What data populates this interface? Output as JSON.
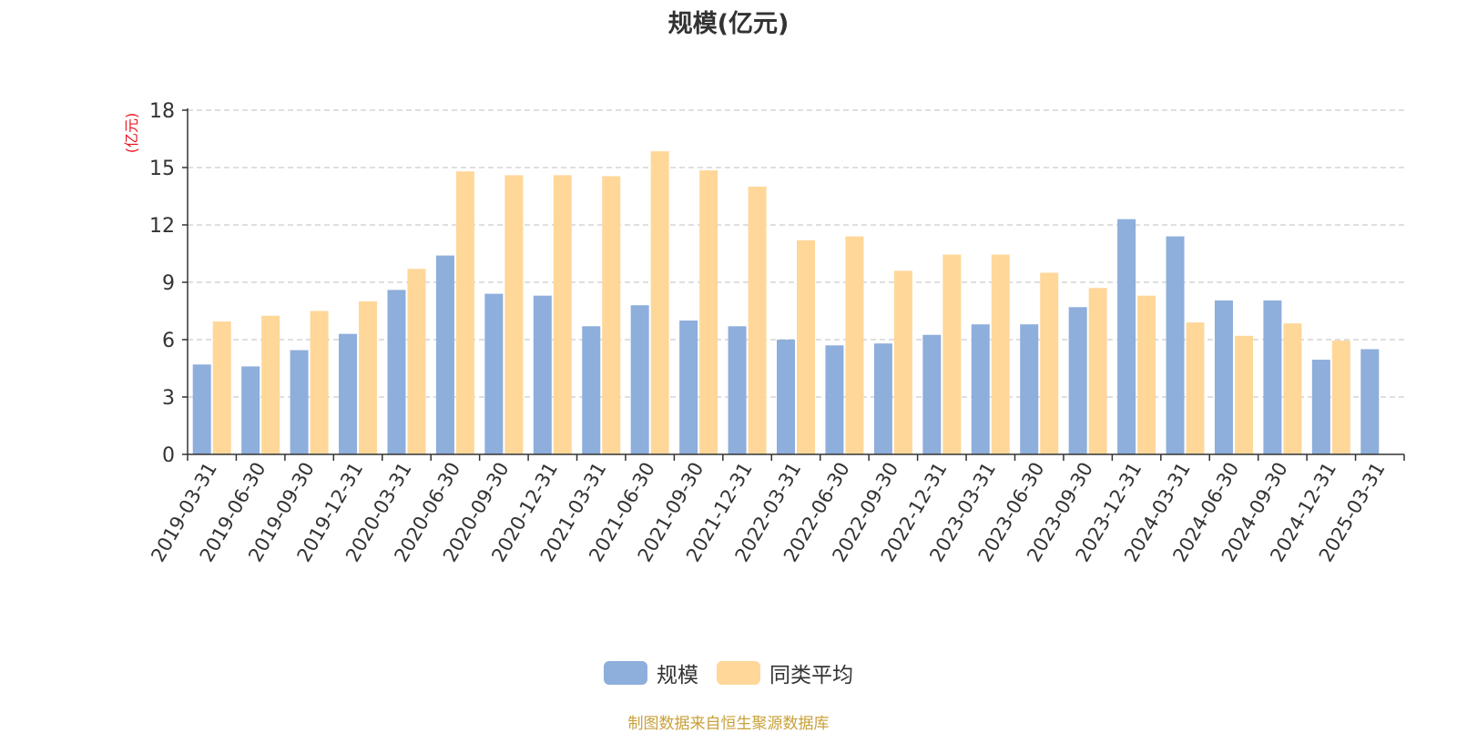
{
  "title": "规模(亿元)",
  "source_note": "制图数据来自恒生聚源数据库",
  "colors": {
    "series1": "#8eaedc",
    "series2": "#ffd799",
    "unit_label": "#e8141f",
    "source": "#c9a13a"
  },
  "chart_data": {
    "type": "bar",
    "title": "规模(亿元)",
    "ylabel": "(亿元)",
    "ylim": [
      0,
      18
    ],
    "yticks": [
      0,
      3,
      6,
      9,
      12,
      15,
      18
    ],
    "grid": true,
    "legend_position": "bottom",
    "categories": [
      "2019-03-31",
      "2019-06-30",
      "2019-09-30",
      "2019-12-31",
      "2020-03-31",
      "2020-06-30",
      "2020-09-30",
      "2020-12-31",
      "2021-03-31",
      "2021-06-30",
      "2021-09-30",
      "2021-12-31",
      "2022-03-31",
      "2022-06-30",
      "2022-09-30",
      "2022-12-31",
      "2023-03-31",
      "2023-06-30",
      "2023-09-30",
      "2023-12-31",
      "2024-03-31",
      "2024-06-30",
      "2024-09-30",
      "2024-12-31",
      "2025-03-31"
    ],
    "series": [
      {
        "name": "规模",
        "values": [
          4.7,
          4.6,
          5.45,
          6.3,
          8.6,
          10.4,
          8.4,
          8.3,
          6.7,
          7.8,
          7.0,
          6.7,
          6.0,
          5.7,
          5.8,
          6.25,
          6.8,
          6.8,
          7.7,
          12.3,
          11.4,
          8.05,
          8.05,
          4.95,
          5.5
        ]
      },
      {
        "name": "同类平均",
        "values": [
          6.95,
          7.25,
          7.5,
          8.0,
          9.7,
          14.8,
          14.6,
          14.6,
          14.55,
          15.85,
          14.85,
          14.0,
          11.2,
          11.4,
          9.6,
          10.45,
          10.45,
          9.5,
          8.7,
          8.3,
          6.9,
          6.2,
          6.85,
          5.95,
          null
        ]
      }
    ]
  }
}
